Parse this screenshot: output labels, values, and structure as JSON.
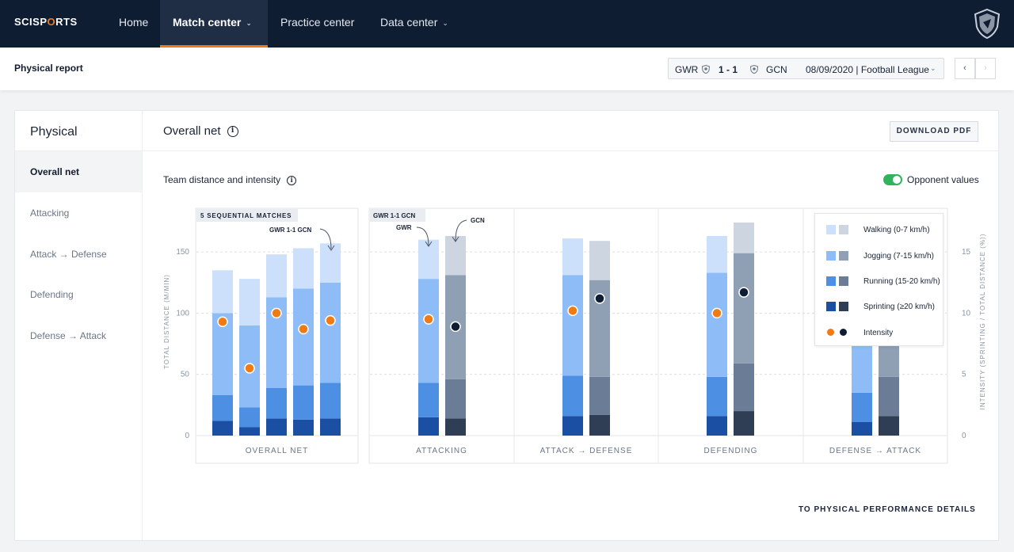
{
  "brand": {
    "left": "SCISP",
    "accent": "O",
    "right": "RTS"
  },
  "nav": {
    "items": [
      {
        "label": "Home",
        "dropdown": false,
        "active": false
      },
      {
        "label": "Match center",
        "dropdown": true,
        "active": true
      },
      {
        "label": "Practice center",
        "dropdown": false,
        "active": false
      },
      {
        "label": "Data center",
        "dropdown": true,
        "active": false
      }
    ],
    "chevron": "⌄"
  },
  "subheader": {
    "title": "Physical report",
    "match": {
      "home": "GWR",
      "score": "1 - 1",
      "away": "GCN",
      "info": "08/09/2020 | Football League"
    },
    "prev": "‹",
    "next": "›"
  },
  "sidebar": {
    "title": "Physical",
    "items": [
      "Overall net",
      "Attacking",
      "Attack → Defense",
      "Defending",
      "Defense → Attack"
    ],
    "active_index": 0
  },
  "content": {
    "title": "Overall net",
    "info_glyph": "i",
    "download_label": "DOWNLOAD PDF",
    "section_title": "Team distance and intensity",
    "toggle_label": "Opponent values",
    "toggle_on": true,
    "details_link": "TO PHYSICAL PERFORMANCE DETAILS"
  },
  "colors": {
    "walking_team": "#cde0fb",
    "jogging_team": "#8ebcf6",
    "running_team": "#4d8fe3",
    "sprinting_team": "#1b4fa3",
    "walking_opp": "#cdd5e0",
    "jogging_opp": "#8f9fb4",
    "running_opp": "#6a7c96",
    "sprinting_opp": "#2f3d55",
    "intensity_team": "#f07a14",
    "intensity_opp": "#0f1d33",
    "nav_bg": "#0f1d33",
    "accent": "#f07a14",
    "toggle": "#2fb35d"
  },
  "chart_data": {
    "type": "bar",
    "stacked": true,
    "ylabel": "TOTAL DISTANCE (M/MIN)",
    "ylim": [
      0,
      185
    ],
    "yticks": [
      0,
      50,
      100,
      150
    ],
    "y2label": "INTENSITY (SPRINTING / TOTAL DISTANCE (%))",
    "y2lim": [
      0,
      18.5
    ],
    "y2ticks": [
      0,
      5,
      10,
      15
    ],
    "grid": true,
    "legend": {
      "position": "top-right",
      "entries": [
        "Walking (0-7 km/h)",
        "Jogging (7-15 km/h)",
        "Running (15-20 km/h)",
        "Sprinting (≥20 km/h)",
        "Intensity"
      ]
    },
    "panels": [
      {
        "label": "OVERALL NET",
        "tag": "5 SEQUENTIAL MATCHES",
        "annotation": "GWR 1-1 GCN",
        "bars": [
          {
            "team": "team",
            "sprinting": 12,
            "running": 21,
            "jogging": 67,
            "walking": 35,
            "intensity": 9.3
          },
          {
            "team": "team",
            "sprinting": 7,
            "running": 16,
            "jogging": 67,
            "walking": 38,
            "intensity": 5.5
          },
          {
            "team": "team",
            "sprinting": 14,
            "running": 25,
            "jogging": 74,
            "walking": 35,
            "intensity": 10.0
          },
          {
            "team": "team",
            "sprinting": 13,
            "running": 28,
            "jogging": 79,
            "walking": 33,
            "intensity": 8.7
          },
          {
            "team": "team",
            "sprinting": 14,
            "running": 29,
            "jogging": 82,
            "walking": 32,
            "intensity": 9.4
          }
        ]
      },
      {
        "label": "ATTACKING",
        "tag": "GWR 1-1 GCN",
        "annotations": [
          "GWR",
          "GCN"
        ],
        "bars": [
          {
            "team": "team",
            "sprinting": 15,
            "running": 28,
            "jogging": 85,
            "walking": 32,
            "intensity": 9.5
          },
          {
            "team": "opp",
            "sprinting": 14,
            "running": 32,
            "jogging": 85,
            "walking": 32,
            "intensity": 8.9
          }
        ]
      },
      {
        "label": "ATTACK → DEFENSE",
        "bars": [
          {
            "team": "team",
            "sprinting": 16,
            "running": 33,
            "jogging": 82,
            "walking": 30,
            "intensity": 10.2
          },
          {
            "team": "opp",
            "sprinting": 17,
            "running": 31,
            "jogging": 79,
            "walking": 32,
            "intensity": 11.2
          }
        ]
      },
      {
        "label": "DEFENDING",
        "bars": [
          {
            "team": "team",
            "sprinting": 16,
            "running": 32,
            "jogging": 85,
            "walking": 30,
            "intensity": 10.0
          },
          {
            "team": "opp",
            "sprinting": 20,
            "running": 39,
            "jogging": 90,
            "walking": 25,
            "intensity": 11.7
          }
        ]
      },
      {
        "label": "DEFENSE → ATTACK",
        "bars": [
          {
            "team": "team",
            "sprinting": 11,
            "running": 24,
            "jogging": 64,
            "walking": 26,
            "intensity": 7.9
          },
          {
            "team": "opp",
            "sprinting": 16,
            "running": 32,
            "jogging": 66,
            "walking": 28,
            "intensity": 11.0
          }
        ]
      }
    ]
  }
}
